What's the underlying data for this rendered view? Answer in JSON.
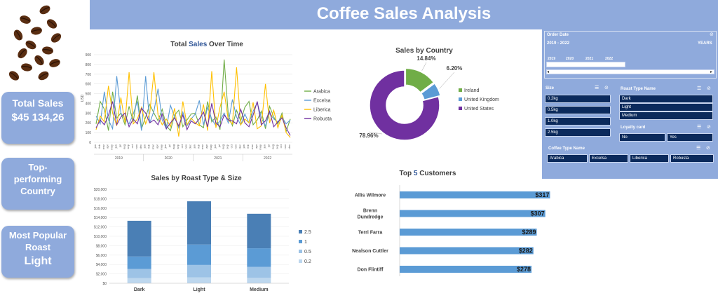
{
  "dashboard": {
    "title": "Coffee Sales Analysis",
    "coffee_beans_icon": "coffee-beans-icon"
  },
  "kpis": {
    "total_sales_label": "Total Sales",
    "total_sales_value": "$45 134,26",
    "country_label_1": "Top-",
    "country_label_2": "performing",
    "country_label_3": "Country",
    "roast_label_1": "Most Popular",
    "roast_label_2": "Roast",
    "roast_value": "Light"
  },
  "filters": {
    "order_date": {
      "title": "Order Date",
      "range": "2019 - 2022",
      "unit": "YEARS",
      "years": [
        "2019",
        "2020",
        "2021",
        "2022"
      ]
    },
    "size": {
      "title": "Size",
      "options": [
        "0.2kg",
        "0.5kg",
        "1.0kg",
        "2.5kg"
      ]
    },
    "roast_type": {
      "title": "Roast Type Name",
      "options": [
        "Dark",
        "Light",
        "Medium"
      ]
    },
    "loyalty": {
      "title": "Loyalty card",
      "options": [
        "No",
        "Yes"
      ]
    },
    "coffee_type": {
      "title": "Coffee Type Name",
      "options": [
        "Arabica",
        "Excelsa",
        "Liberica",
        "Robusta"
      ]
    }
  },
  "chart_data": [
    {
      "id": "sales_over_time",
      "type": "line",
      "title_part1": "Total ",
      "title_highlight": "Sales",
      "title_part2": " Over Time",
      "ylabel": "USD",
      "ylim": [
        0,
        900
      ],
      "yticks": [
        0,
        100,
        200,
        300,
        400,
        500,
        600,
        700,
        800,
        900
      ],
      "years": [
        "2019",
        "2020",
        "2021",
        "2022"
      ],
      "month_labels": [
        "jan",
        "feb",
        "mar",
        "apr",
        "may",
        "jun",
        "jul",
        "aug",
        "sep",
        "oct",
        "nov",
        "dec"
      ],
      "series": [
        {
          "name": "Arabica",
          "color": "#70ad47",
          "values": [
            190,
            420,
            340,
            120,
            520,
            250,
            300,
            180,
            370,
            210,
            480,
            140,
            260,
            390,
            300,
            220,
            340,
            170,
            120,
            280,
            330,
            160,
            230,
            290,
            300,
            180,
            150,
            420,
            210,
            260,
            130,
            850,
            280,
            170,
            330,
            220,
            360,
            420,
            180,
            230,
            320,
            140,
            370,
            260,
            190,
            300,
            110,
            240
          ]
        },
        {
          "name": "Excelsa",
          "color": "#5b9bd5",
          "values": [
            270,
            190,
            520,
            230,
            140,
            680,
            300,
            240,
            190,
            290,
            420,
            120,
            680,
            200,
            320,
            550,
            230,
            140,
            380,
            260,
            150,
            310,
            170,
            240,
            290,
            430,
            180,
            360,
            240,
            170,
            220,
            300,
            200,
            440,
            260,
            180,
            290,
            200,
            320,
            410,
            250,
            170,
            300,
            240,
            210,
            260,
            190,
            230
          ]
        },
        {
          "name": "Liberica",
          "color": "#ffc000",
          "values": [
            130,
            270,
            210,
            580,
            300,
            170,
            460,
            200,
            720,
            190,
            240,
            360,
            190,
            300,
            720,
            280,
            180,
            240,
            160,
            350,
            60,
            420,
            180,
            250,
            200,
            170,
            390,
            120,
            730,
            150,
            360,
            520,
            230,
            190,
            770,
            180,
            240,
            200,
            410,
            140,
            170,
            600,
            200,
            330,
            150,
            280,
            100,
            50
          ]
        },
        {
          "name": "Robusta",
          "color": "#7030a0",
          "values": [
            150,
            230,
            180,
            280,
            420,
            180,
            260,
            300,
            160,
            240,
            190,
            350,
            300,
            200,
            230,
            180,
            290,
            140,
            200,
            250,
            170,
            280,
            130,
            220,
            190,
            240,
            310,
            160,
            400,
            200,
            160,
            280,
            230,
            220,
            190,
            340,
            200,
            160,
            280,
            420,
            180,
            220,
            320,
            160,
            210,
            250,
            150,
            70
          ]
        }
      ]
    },
    {
      "id": "sales_by_country",
      "type": "pie",
      "title": "Sales by Country",
      "slices": [
        {
          "name": "Ireland",
          "value": 14.84,
          "label": "14.84%",
          "color": "#70ad47"
        },
        {
          "name": "United Kingdom",
          "value": 6.2,
          "label": "6.20%",
          "color": "#5b9bd5"
        },
        {
          "name": "United States",
          "value": 78.96,
          "label": "78.96%",
          "color": "#7030a0"
        }
      ]
    },
    {
      "id": "sales_by_roast_size",
      "type": "bar",
      "title": "Sales by Roast Type & Size",
      "categories": [
        "Dark",
        "Light",
        "Medium"
      ],
      "ylim": [
        0,
        20000
      ],
      "yticks": [
        "$0",
        "$2,000",
        "$4,000",
        "$6,000",
        "$8,000",
        "$10,000",
        "$12,000",
        "$14,000",
        "$16,000",
        "$18,000",
        "$20,000"
      ],
      "series": [
        {
          "name": "0.2",
          "color": "#bdd7ee",
          "values": [
            1100,
            1250,
            1150
          ]
        },
        {
          "name": "0.5",
          "color": "#9dc3e6",
          "values": [
            1950,
            2650,
            2350
          ]
        },
        {
          "name": "1",
          "color": "#5b9bd5",
          "values": [
            2650,
            4350,
            3950
          ]
        },
        {
          "name": "2.5",
          "color": "#4a7fb5",
          "values": [
            7600,
            9200,
            7350
          ]
        }
      ]
    },
    {
      "id": "top_customers",
      "type": "bar",
      "title_part1": "Top ",
      "title_highlight": "5",
      "title_part2": " Customers",
      "categories": [
        "Allis Wilmore",
        "Brenn Dundredge",
        "Terri Farra",
        "Nealson Cuttler",
        "Don Flintiff"
      ],
      "values": [
        317,
        307,
        289,
        282,
        278
      ],
      "labels": [
        "$317",
        "$307",
        "$289",
        "$282",
        "$278"
      ],
      "color": "#5b9bd5"
    }
  ]
}
